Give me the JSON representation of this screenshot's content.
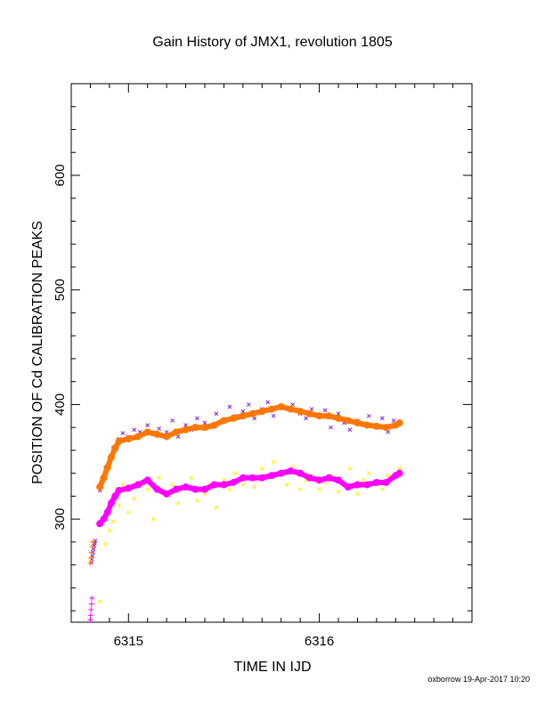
{
  "chart_data": {
    "type": "scatter",
    "title": "Gain History of JMX1, revolution 1805",
    "xlabel": "TIME IN IJD",
    "ylabel": "POSITION OF Cd CALIBRATION PEAKS",
    "xlim": [
      6314.7,
      6316.8
    ],
    "ylim": [
      210,
      680
    ],
    "xticks": [
      6315,
      6316
    ],
    "yticks": [
      300,
      400,
      500,
      600
    ],
    "grid": false,
    "legend": "none",
    "series": [
      {
        "marker": "x",
        "color": "#7f1fe0",
        "x": [
          6314.805,
          6314.808,
          6314.811,
          6314.814,
          6314.817,
          6314.82,
          6314.823,
          6314.826,
          6314.85,
          6314.88,
          6314.9,
          6314.92,
          6314.95,
          6314.97,
          6315.0,
          6315.03,
          6315.06,
          6315.1,
          6315.13,
          6315.16,
          6315.2,
          6315.23,
          6315.26,
          6315.3,
          6315.33,
          6315.36,
          6315.4,
          6315.43,
          6315.46,
          6315.5,
          6315.53,
          6315.56,
          6315.6,
          6315.63,
          6315.66,
          6315.7,
          6315.73,
          6315.76,
          6315.8,
          6315.83,
          6315.86,
          6315.9,
          6315.93,
          6315.96,
          6316.0,
          6316.03,
          6316.06,
          6316.1,
          6316.13,
          6316.16,
          6316.2,
          6316.23,
          6316.26,
          6316.3,
          6316.33,
          6316.36,
          6316.39,
          6316.42
        ],
        "y": [
          262,
          265,
          268,
          271,
          274,
          277,
          279,
          281,
          325,
          345,
          352,
          362,
          370,
          375,
          372,
          378,
          376,
          382,
          374,
          379,
          376,
          386,
          372,
          382,
          378,
          388,
          384,
          380,
          392,
          386,
          398,
          390,
          394,
          400,
          388,
          396,
          402,
          390,
          398,
          396,
          400,
          392,
          388,
          396,
          390,
          395,
          380,
          392,
          384,
          378,
          386,
          382,
          390,
          380,
          388,
          376,
          386,
          384
        ]
      },
      {
        "marker": "x",
        "color": "#ffee00",
        "x": [
          6314.85,
          6314.88,
          6314.9,
          6314.92,
          6314.95,
          6314.97,
          6315.0,
          6315.03,
          6315.06,
          6315.1,
          6315.13,
          6315.16,
          6315.2,
          6315.23,
          6315.26,
          6315.3,
          6315.33,
          6315.36,
          6315.4,
          6315.43,
          6315.46,
          6315.5,
          6315.53,
          6315.56,
          6315.6,
          6315.63,
          6315.66,
          6315.7,
          6315.73,
          6315.76,
          6315.8,
          6315.83,
          6315.86,
          6315.9,
          6315.93,
          6315.96,
          6316.0,
          6316.03,
          6316.06,
          6316.1,
          6316.13,
          6316.16,
          6316.2,
          6316.23,
          6316.26,
          6316.3,
          6316.33,
          6316.36,
          6316.39,
          6316.42
        ],
        "y": [
          228,
          278,
          290,
          298,
          312,
          330,
          306,
          318,
          332,
          326,
          300,
          336,
          322,
          330,
          314,
          328,
          336,
          316,
          322,
          330,
          310,
          334,
          326,
          340,
          330,
          336,
          328,
          344,
          336,
          350,
          340,
          330,
          346,
          326,
          334,
          338,
          326,
          332,
          338,
          324,
          330,
          344,
          322,
          334,
          340,
          330,
          326,
          338,
          336,
          344
        ]
      },
      {
        "marker": "circle",
        "color": "#ff7700",
        "x": [
          6314.85,
          6314.87,
          6314.89,
          6314.91,
          6314.93,
          6314.95,
          6315.0,
          6315.05,
          6315.1,
          6315.15,
          6315.2,
          6315.25,
          6315.3,
          6315.35,
          6315.4,
          6315.45,
          6315.5,
          6315.55,
          6315.6,
          6315.65,
          6315.7,
          6315.75,
          6315.8,
          6315.85,
          6315.9,
          6315.95,
          6316.0,
          6316.05,
          6316.1,
          6316.15,
          6316.2,
          6316.25,
          6316.3,
          6316.35,
          6316.4,
          6316.42
        ],
        "y": [
          328,
          336,
          345,
          354,
          362,
          368,
          370,
          372,
          376,
          374,
          372,
          376,
          378,
          380,
          380,
          382,
          386,
          388,
          390,
          392,
          394,
          396,
          398,
          396,
          394,
          392,
          390,
          390,
          388,
          386,
          384,
          382,
          381,
          380,
          382,
          384
        ]
      },
      {
        "marker": "circle",
        "color": "#ff00ff",
        "x": [
          6314.85,
          6314.87,
          6314.89,
          6314.91,
          6314.93,
          6314.95,
          6315.0,
          6315.05,
          6315.1,
          6315.15,
          6315.2,
          6315.25,
          6315.3,
          6315.35,
          6315.4,
          6315.45,
          6315.5,
          6315.55,
          6315.6,
          6315.65,
          6315.7,
          6315.75,
          6315.8,
          6315.85,
          6315.9,
          6315.95,
          6316.0,
          6316.05,
          6316.1,
          6316.15,
          6316.2,
          6316.25,
          6316.3,
          6316.35,
          6316.4,
          6316.42
        ],
        "y": [
          296,
          300,
          306,
          314,
          320,
          325,
          327,
          330,
          334,
          326,
          322,
          326,
          328,
          326,
          326,
          330,
          330,
          332,
          336,
          336,
          336,
          338,
          340,
          342,
          340,
          336,
          334,
          336,
          334,
          328,
          330,
          330,
          332,
          332,
          338,
          340
        ]
      },
      {
        "marker": "plus",
        "color": "#ff00ff",
        "x": [
          6314.8,
          6314.802,
          6314.804,
          6314.806,
          6314.808
        ],
        "y": [
          212,
          216,
          221,
          226,
          231
        ]
      },
      {
        "marker": "plus",
        "color": "#ff7700",
        "x": [
          6314.8,
          6314.803,
          6314.806,
          6314.809,
          6314.812
        ],
        "y": [
          262,
          266,
          271,
          276,
          280
        ]
      }
    ]
  },
  "footer": {
    "text": "oxborrow 19-Apr-2017 10:20"
  }
}
